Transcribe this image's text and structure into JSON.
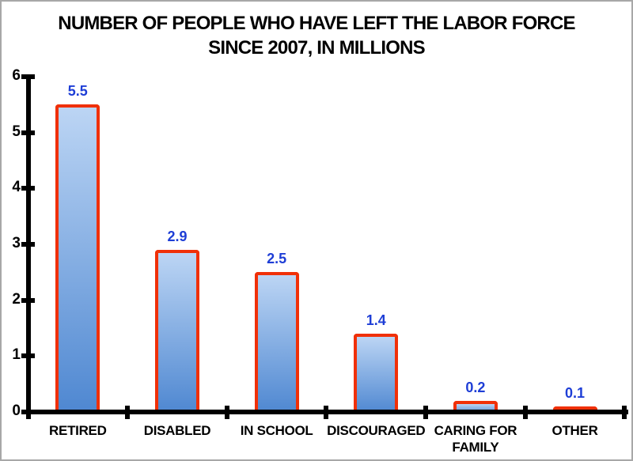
{
  "header": {
    "title_line1": "NUMBER OF PEOPLE WHO HAVE LEFT THE LABOR FORCE",
    "title_line2": "SINCE 2007, IN MILLIONS"
  },
  "chart_data": {
    "type": "bar",
    "title": "NUMBER OF PEOPLE WHO HAVE LEFT THE LABOR FORCE SINCE 2007, IN MILLIONS",
    "categories": [
      "RETIRED",
      "DISABLED",
      "IN SCHOOL",
      "DISCOURAGED",
      "CARING FOR FAMILY",
      "OTHER"
    ],
    "values": [
      5.5,
      2.9,
      2.5,
      1.4,
      0.2,
      0.1
    ],
    "data_labels": [
      "5.5",
      "2.9",
      "2.5",
      "1.4",
      "0.2",
      "0.1"
    ],
    "y_ticks": [
      "0",
      "1",
      "2",
      "3",
      "4",
      "5",
      "6"
    ],
    "ylim": [
      0,
      6
    ],
    "xlabel": "",
    "ylabel": "",
    "grid": false,
    "legend_position": "none",
    "colors": {
      "bar_fill_top": "#bcd5f4",
      "bar_fill_bottom": "#4e87d1",
      "bar_border": "#f03008",
      "value_label": "#1e3ed6",
      "axis": "#000000",
      "title_text": "#000000",
      "frame_border": "#a8a8a8",
      "background": "#ffffff"
    }
  }
}
